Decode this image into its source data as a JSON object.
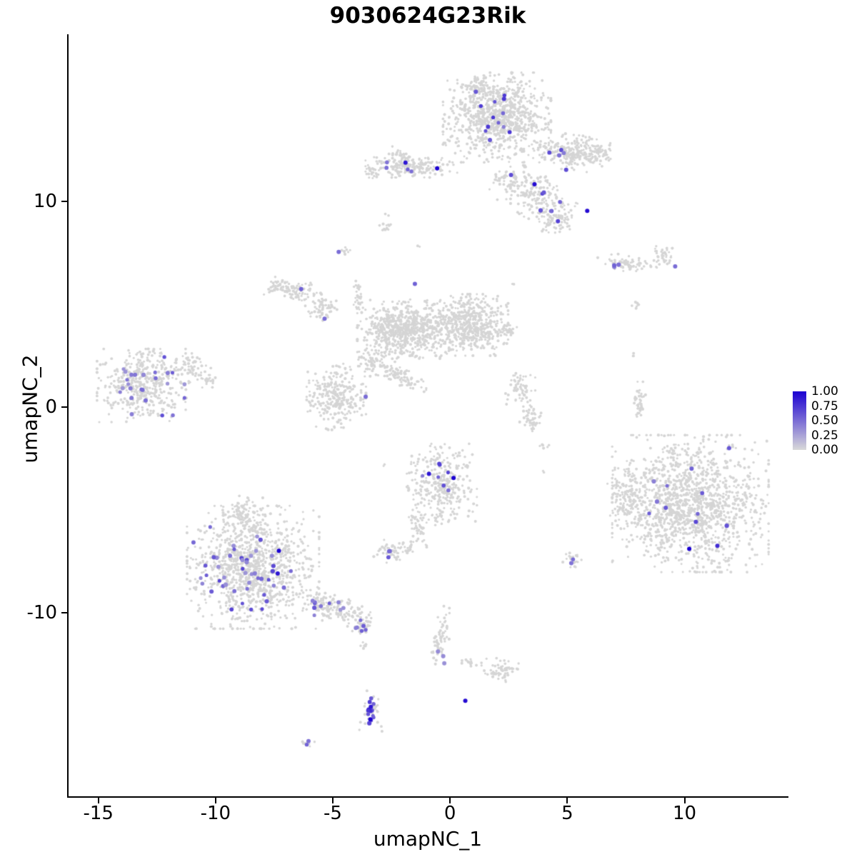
{
  "chart_data": {
    "type": "scatter",
    "title": "9030624G23Rik",
    "xlabel": "umapNC_1",
    "ylabel": "umapNC_2",
    "xlim": [
      -16.3,
      14.4
    ],
    "ylim": [
      -18.95,
      18.15
    ],
    "grid": false,
    "xticks": {
      "values": [
        -15,
        -10,
        -5,
        0,
        5,
        10
      ],
      "labels": [
        "-15",
        "-10",
        "-5",
        "0",
        "5",
        "10"
      ]
    },
    "yticks": {
      "values": [
        10,
        0,
        -10
      ],
      "labels": [
        "10",
        "0",
        "-10"
      ]
    },
    "legend": {
      "position": "right",
      "values": [
        1.0,
        0.75,
        0.5,
        0.25,
        0.0
      ],
      "labels": [
        "1.00",
        "0.75",
        "0.50",
        "0.25",
        "0.00"
      ]
    },
    "colors": {
      "background_points": "#d5d5d5",
      "scale_low": "#d9d9d9",
      "scale_high": "#1b00d2",
      "axis": "#000000"
    },
    "background_clusters_format": "cx, cy, rx, ry, n_points, angle_deg",
    "background_clusters": [
      [
        2.0,
        14.1,
        2.0,
        1.9,
        900,
        0
      ],
      [
        1.15,
        15.6,
        0.55,
        0.5,
        70,
        0
      ],
      [
        5.2,
        12.4,
        1.4,
        0.75,
        220,
        -8
      ],
      [
        6.35,
        12.3,
        0.5,
        0.5,
        40,
        0
      ],
      [
        3.8,
        10.2,
        1.25,
        1.0,
        170,
        -40
      ],
      [
        4.5,
        9.1,
        0.6,
        0.6,
        70,
        0
      ],
      [
        2.6,
        10.9,
        0.8,
        0.9,
        60,
        0
      ],
      [
        -1.65,
        11.75,
        1.7,
        0.5,
        200,
        0
      ],
      [
        -3.25,
        11.45,
        0.4,
        0.3,
        25,
        0
      ],
      [
        -2.2,
        12.4,
        0.3,
        0.25,
        12,
        0
      ],
      [
        -2.75,
        8.75,
        0.28,
        0.25,
        14,
        0
      ],
      [
        -4.5,
        7.55,
        0.22,
        0.2,
        9,
        0
      ],
      [
        -6.7,
        5.65,
        1.25,
        0.5,
        110,
        -15
      ],
      [
        -5.4,
        4.85,
        0.55,
        0.55,
        60,
        0
      ],
      [
        -3.95,
        5.4,
        0.2,
        0.9,
        30,
        0
      ],
      [
        -2.0,
        3.8,
        1.7,
        1.25,
        700,
        0
      ],
      [
        0.75,
        4.0,
        1.5,
        1.3,
        550,
        0
      ],
      [
        2.5,
        3.75,
        0.38,
        0.3,
        25,
        0
      ],
      [
        -4.85,
        0.5,
        1.1,
        1.4,
        280,
        0
      ],
      [
        -2.1,
        1.5,
        1.1,
        0.45,
        90,
        -35
      ],
      [
        -3.35,
        2.25,
        0.8,
        0.7,
        60,
        0
      ],
      [
        -13.1,
        1.05,
        1.7,
        1.55,
        430,
        0
      ],
      [
        -11.1,
        1.9,
        0.78,
        0.62,
        60,
        0
      ],
      [
        -10.3,
        1.3,
        0.35,
        0.3,
        20,
        0
      ],
      [
        3.0,
        0.75,
        0.55,
        0.78,
        60,
        0
      ],
      [
        3.45,
        -0.6,
        0.45,
        0.62,
        45,
        0
      ],
      [
        4.05,
        -1.9,
        0.2,
        0.2,
        6,
        0
      ],
      [
        7.6,
        7.0,
        1.15,
        0.35,
        70,
        -6
      ],
      [
        9.1,
        7.35,
        0.55,
        0.42,
        35,
        0
      ],
      [
        8.05,
        0.2,
        0.28,
        0.9,
        40,
        0
      ],
      [
        7.95,
        4.95,
        0.18,
        0.18,
        8,
        0
      ],
      [
        7.75,
        2.5,
        0.12,
        0.12,
        3,
        0
      ],
      [
        10.25,
        -4.7,
        2.9,
        2.9,
        1400,
        0
      ],
      [
        7.55,
        -4.4,
        0.75,
        1.2,
        120,
        0
      ],
      [
        9.4,
        -2.1,
        0.3,
        0.3,
        12,
        0
      ],
      [
        -0.35,
        -3.8,
        1.3,
        1.75,
        330,
        0
      ],
      [
        -1.35,
        -5.9,
        0.3,
        1.0,
        45,
        15
      ],
      [
        -1.75,
        -6.9,
        0.3,
        0.3,
        20,
        0
      ],
      [
        -2.5,
        -7.0,
        0.68,
        0.5,
        45,
        0
      ],
      [
        5.2,
        -7.45,
        0.35,
        0.3,
        25,
        0
      ],
      [
        -8.4,
        -7.8,
        2.45,
        2.6,
        1100,
        0
      ],
      [
        -8.85,
        -5.3,
        0.75,
        0.85,
        90,
        0
      ],
      [
        -5.0,
        -9.8,
        1.35,
        0.62,
        160,
        -22
      ],
      [
        -3.8,
        -10.65,
        0.38,
        0.42,
        35,
        0
      ],
      [
        -3.65,
        -11.6,
        0.15,
        0.3,
        6,
        0
      ],
      [
        -0.35,
        -11.1,
        0.3,
        1.25,
        60,
        -12
      ],
      [
        2.15,
        -12.8,
        0.68,
        0.5,
        60,
        0
      ],
      [
        0.95,
        -12.45,
        0.55,
        0.15,
        15,
        -10
      ],
      [
        -3.35,
        -14.75,
        0.45,
        0.9,
        30,
        0
      ],
      [
        -6.1,
        -16.4,
        0.28,
        0.2,
        10,
        0
      ],
      [
        -2.7,
        9.4,
        0.1,
        0.1,
        2,
        0
      ],
      [
        -1.35,
        7.8,
        0.1,
        0.1,
        2,
        0
      ],
      [
        2.3,
        3.1,
        0.15,
        0.15,
        3,
        0
      ],
      [
        2.7,
        6.0,
        0.12,
        0.12,
        2,
        0
      ],
      [
        -2.8,
        -2.8,
        0.1,
        0.1,
        2,
        0
      ],
      [
        3.95,
        -3.1,
        0.1,
        0.1,
        2,
        0
      ]
    ],
    "expression_regions_format": "cx, cy, rx, ry, n_points, value_min, value_max",
    "expression_regions": [
      [
        -13.05,
        1.0,
        1.5,
        1.25,
        26,
        0.3,
        0.65
      ],
      [
        -8.7,
        -7.9,
        1.95,
        1.8,
        48,
        0.3,
        0.7
      ],
      [
        -5.2,
        -9.8,
        1.15,
        0.5,
        10,
        0.3,
        0.6
      ],
      [
        -3.85,
        -10.6,
        0.3,
        0.35,
        6,
        0.4,
        0.7
      ],
      [
        1.8,
        14.2,
        1.1,
        1.3,
        10,
        0.35,
        0.8
      ],
      [
        4.8,
        12.3,
        1.0,
        0.4,
        4,
        0.4,
        0.7
      ],
      [
        4.3,
        9.7,
        0.7,
        0.7,
        5,
        0.4,
        0.75
      ],
      [
        -1.9,
        11.7,
        1.2,
        0.3,
        4,
        0.35,
        0.65
      ],
      [
        -0.5,
        -3.4,
        0.8,
        1.0,
        7,
        0.4,
        0.8
      ],
      [
        -2.6,
        -7.0,
        0.5,
        0.3,
        3,
        0.4,
        0.6
      ],
      [
        10.2,
        -4.6,
        2.3,
        2.0,
        8,
        0.4,
        0.7
      ],
      [
        -3.4,
        -14.8,
        0.3,
        0.75,
        13,
        0.4,
        0.9
      ],
      [
        -0.3,
        -11.9,
        0.2,
        0.5,
        3,
        0.3,
        0.5
      ],
      [
        -6.05,
        -16.35,
        0.2,
        0.15,
        2,
        0.4,
        0.6
      ],
      [
        5.15,
        -7.45,
        0.2,
        0.15,
        2,
        0.35,
        0.55
      ],
      [
        7.3,
        6.95,
        0.55,
        0.2,
        2,
        0.4,
        0.6
      ]
    ],
    "expression_points_format": "x, y, expression_value",
    "expression_points": [
      [
        -0.55,
        11.62,
        1.0
      ],
      [
        -1.9,
        11.9,
        0.9
      ],
      [
        3.6,
        10.85,
        0.95
      ],
      [
        5.85,
        9.55,
        0.95
      ],
      [
        4.6,
        9.05,
        0.7
      ],
      [
        0.15,
        -3.45,
        1.0
      ],
      [
        -0.9,
        -3.25,
        0.9
      ],
      [
        -7.3,
        -7.0,
        1.0
      ],
      [
        -7.35,
        -8.1,
        0.9
      ],
      [
        10.2,
        -6.9,
        1.0
      ],
      [
        11.4,
        -6.75,
        0.8
      ],
      [
        11.9,
        -2.0,
        0.6
      ],
      [
        10.3,
        -3.0,
        0.55
      ],
      [
        9.2,
        -4.9,
        0.6
      ],
      [
        -3.4,
        -15.2,
        1.0
      ],
      [
        0.65,
        -14.3,
        0.95
      ],
      [
        -1.5,
        6.0,
        0.55
      ],
      [
        -4.75,
        7.55,
        0.5
      ],
      [
        -6.35,
        5.75,
        0.55
      ],
      [
        -5.35,
        4.3,
        0.5
      ],
      [
        -3.6,
        0.5,
        0.5
      ],
      [
        7.0,
        6.9,
        0.55
      ],
      [
        9.6,
        6.85,
        0.5
      ],
      [
        2.3,
        15.0,
        0.75
      ],
      [
        1.1,
        15.35,
        0.6
      ],
      [
        1.7,
        13.0,
        0.6
      ],
      [
        2.6,
        11.3,
        0.65
      ],
      [
        4.0,
        10.45,
        0.6
      ],
      [
        4.95,
        11.55,
        0.65
      ]
    ]
  }
}
